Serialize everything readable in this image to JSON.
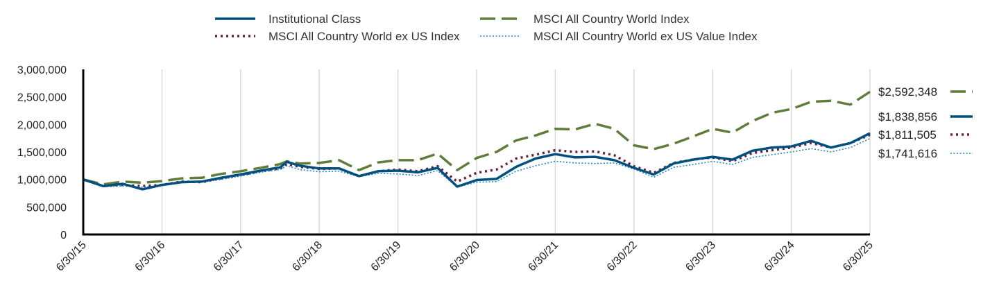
{
  "chart_data": {
    "type": "line",
    "ylim": [
      0,
      3000000
    ],
    "y_ticks": [
      {
        "value": 0,
        "label": "0"
      },
      {
        "value": 500000,
        "label": "500,000"
      },
      {
        "value": 1000000,
        "label": "1,000,000"
      },
      {
        "value": 1500000,
        "label": "1,500,000"
      },
      {
        "value": 2000000,
        "label": "2,000,000"
      },
      {
        "value": 2500000,
        "label": "2,500,000"
      },
      {
        "value": 3000000,
        "label": "3,000,000"
      }
    ],
    "x_ticks": [
      "6/30/15",
      "6/30/16",
      "6/30/17",
      "6/30/18",
      "6/30/19",
      "6/30/20",
      "6/30/21",
      "6/30/22",
      "6/30/23",
      "6/30/24",
      "6/30/25"
    ],
    "grid": "vertical",
    "legend_position": "top",
    "series": [
      {
        "name": "Institutional Class",
        "color": "#00507f",
        "style": "solid",
        "end_label": "$1,838,856",
        "values": [
          [
            "6/30/15",
            1000000
          ],
          [
            "9/30/15",
            880000
          ],
          [
            "12/31/15",
            920000
          ],
          [
            "3/31/16",
            820000
          ],
          [
            "6/30/16",
            900000
          ],
          [
            "9/30/16",
            950000
          ],
          [
            "12/31/16",
            960000
          ],
          [
            "3/31/17",
            1030000
          ],
          [
            "6/30/17",
            1090000
          ],
          [
            "9/30/17",
            1160000
          ],
          [
            "12/31/17",
            1220000
          ],
          [
            "1/31/18",
            1320000
          ],
          [
            "3/31/18",
            1250000
          ],
          [
            "6/30/18",
            1200000
          ],
          [
            "9/30/18",
            1200000
          ],
          [
            "12/31/18",
            1060000
          ],
          [
            "3/31/19",
            1150000
          ],
          [
            "6/30/19",
            1160000
          ],
          [
            "9/30/19",
            1130000
          ],
          [
            "12/31/19",
            1210000
          ],
          [
            "3/31/20",
            870000
          ],
          [
            "6/30/20",
            990000
          ],
          [
            "9/30/20",
            1010000
          ],
          [
            "12/31/20",
            1230000
          ],
          [
            "3/31/21",
            1380000
          ],
          [
            "6/30/21",
            1460000
          ],
          [
            "9/30/21",
            1400000
          ],
          [
            "12/31/21",
            1410000
          ],
          [
            "3/31/22",
            1350000
          ],
          [
            "6/30/22",
            1210000
          ],
          [
            "9/30/22",
            1090000
          ],
          [
            "12/31/22",
            1290000
          ],
          [
            "3/31/23",
            1360000
          ],
          [
            "6/30/23",
            1410000
          ],
          [
            "9/30/23",
            1360000
          ],
          [
            "12/31/23",
            1520000
          ],
          [
            "3/31/24",
            1580000
          ],
          [
            "6/30/24",
            1600000
          ],
          [
            "9/30/24",
            1700000
          ],
          [
            "12/31/24",
            1580000
          ],
          [
            "3/31/25",
            1660000
          ],
          [
            "6/30/25",
            1838856
          ]
        ]
      },
      {
        "name": "MSCI All Country World Index",
        "color": "#5e7d3a",
        "style": "dashed",
        "end_label": "$2,592,348",
        "values": [
          [
            "6/30/15",
            1000000
          ],
          [
            "9/30/15",
            910000
          ],
          [
            "12/31/15",
            960000
          ],
          [
            "3/31/16",
            940000
          ],
          [
            "6/30/16",
            970000
          ],
          [
            "9/30/16",
            1020000
          ],
          [
            "12/31/16",
            1030000
          ],
          [
            "3/31/17",
            1100000
          ],
          [
            "6/30/17",
            1150000
          ],
          [
            "9/30/17",
            1210000
          ],
          [
            "12/31/17",
            1280000
          ],
          [
            "1/31/18",
            1330000
          ],
          [
            "3/31/18",
            1290000
          ],
          [
            "6/30/18",
            1300000
          ],
          [
            "9/30/18",
            1350000
          ],
          [
            "12/31/18",
            1170000
          ],
          [
            "3/31/19",
            1310000
          ],
          [
            "6/30/19",
            1350000
          ],
          [
            "9/30/19",
            1350000
          ],
          [
            "12/31/19",
            1470000
          ],
          [
            "3/31/20",
            1170000
          ],
          [
            "6/30/20",
            1390000
          ],
          [
            "9/30/20",
            1500000
          ],
          [
            "12/31/20",
            1710000
          ],
          [
            "3/31/21",
            1800000
          ],
          [
            "6/30/21",
            1920000
          ],
          [
            "9/30/21",
            1910000
          ],
          [
            "12/31/21",
            2010000
          ],
          [
            "3/31/22",
            1920000
          ],
          [
            "6/30/22",
            1620000
          ],
          [
            "9/30/22",
            1550000
          ],
          [
            "12/31/22",
            1650000
          ],
          [
            "3/31/23",
            1780000
          ],
          [
            "6/30/23",
            1920000
          ],
          [
            "9/30/23",
            1850000
          ],
          [
            "12/31/23",
            2060000
          ],
          [
            "3/31/24",
            2210000
          ],
          [
            "6/30/24",
            2280000
          ],
          [
            "9/30/24",
            2410000
          ],
          [
            "12/31/24",
            2430000
          ],
          [
            "3/31/25",
            2360000
          ],
          [
            "6/30/25",
            2592348
          ]
        ]
      },
      {
        "name": "MSCI All Country World ex US Index",
        "color": "#6b1e3d",
        "style": "dotted",
        "end_label": "$1,811,505",
        "values": [
          [
            "6/30/15",
            1000000
          ],
          [
            "9/30/15",
            880000
          ],
          [
            "12/31/15",
            900000
          ],
          [
            "3/31/16",
            880000
          ],
          [
            "6/30/16",
            900000
          ],
          [
            "9/30/16",
            960000
          ],
          [
            "12/31/16",
            950000
          ],
          [
            "3/31/17",
            1020000
          ],
          [
            "6/30/17",
            1080000
          ],
          [
            "9/30/17",
            1150000
          ],
          [
            "12/31/17",
            1200000
          ],
          [
            "1/31/18",
            1280000
          ],
          [
            "3/31/18",
            1230000
          ],
          [
            "6/30/18",
            1190000
          ],
          [
            "9/30/18",
            1200000
          ],
          [
            "12/31/18",
            1060000
          ],
          [
            "3/31/19",
            1150000
          ],
          [
            "6/30/19",
            1180000
          ],
          [
            "9/30/19",
            1150000
          ],
          [
            "12/31/19",
            1240000
          ],
          [
            "3/31/20",
            960000
          ],
          [
            "6/30/20",
            1120000
          ],
          [
            "9/30/20",
            1180000
          ],
          [
            "12/31/20",
            1380000
          ],
          [
            "3/31/21",
            1450000
          ],
          [
            "6/30/21",
            1530000
          ],
          [
            "9/30/21",
            1500000
          ],
          [
            "12/31/21",
            1510000
          ],
          [
            "3/31/22",
            1440000
          ],
          [
            "6/30/22",
            1240000
          ],
          [
            "9/30/22",
            1120000
          ],
          [
            "12/31/22",
            1300000
          ],
          [
            "3/31/23",
            1360000
          ],
          [
            "6/30/23",
            1400000
          ],
          [
            "9/30/23",
            1330000
          ],
          [
            "12/31/23",
            1480000
          ],
          [
            "3/31/24",
            1530000
          ],
          [
            "6/30/24",
            1580000
          ],
          [
            "9/30/24",
            1660000
          ],
          [
            "12/31/24",
            1580000
          ],
          [
            "3/31/25",
            1660000
          ],
          [
            "6/30/25",
            1811505
          ]
        ]
      },
      {
        "name": "MSCI All Country World ex US Value Index",
        "color": "#1a8ac4",
        "style": "fine-dotted",
        "end_label": "$1,741,616",
        "values": [
          [
            "6/30/15",
            1000000
          ],
          [
            "9/30/15",
            870000
          ],
          [
            "12/31/15",
            880000
          ],
          [
            "3/31/16",
            860000
          ],
          [
            "6/30/16",
            890000
          ],
          [
            "9/30/16",
            950000
          ],
          [
            "12/31/16",
            950000
          ],
          [
            "3/31/17",
            1000000
          ],
          [
            "6/30/17",
            1060000
          ],
          [
            "9/30/17",
            1130000
          ],
          [
            "12/31/17",
            1180000
          ],
          [
            "1/31/18",
            1250000
          ],
          [
            "3/31/18",
            1180000
          ],
          [
            "6/30/18",
            1140000
          ],
          [
            "9/30/18",
            1150000
          ],
          [
            "12/31/18",
            1050000
          ],
          [
            "3/31/19",
            1110000
          ],
          [
            "6/30/19",
            1100000
          ],
          [
            "9/30/19",
            1070000
          ],
          [
            "12/31/19",
            1160000
          ],
          [
            "3/31/20",
            860000
          ],
          [
            "6/30/20",
            950000
          ],
          [
            "9/30/20",
            960000
          ],
          [
            "12/31/20",
            1150000
          ],
          [
            "3/31/21",
            1250000
          ],
          [
            "6/30/21",
            1330000
          ],
          [
            "9/30/21",
            1300000
          ],
          [
            "12/31/21",
            1290000
          ],
          [
            "3/31/22",
            1300000
          ],
          [
            "6/30/22",
            1190000
          ],
          [
            "9/30/22",
            1040000
          ],
          [
            "12/31/22",
            1220000
          ],
          [
            "3/31/23",
            1270000
          ],
          [
            "6/30/23",
            1330000
          ],
          [
            "9/30/23",
            1270000
          ],
          [
            "12/31/23",
            1400000
          ],
          [
            "3/31/24",
            1450000
          ],
          [
            "6/30/24",
            1500000
          ],
          [
            "9/30/24",
            1560000
          ],
          [
            "12/31/24",
            1500000
          ],
          [
            "3/31/25",
            1580000
          ],
          [
            "6/30/25",
            1741616
          ]
        ]
      }
    ]
  }
}
